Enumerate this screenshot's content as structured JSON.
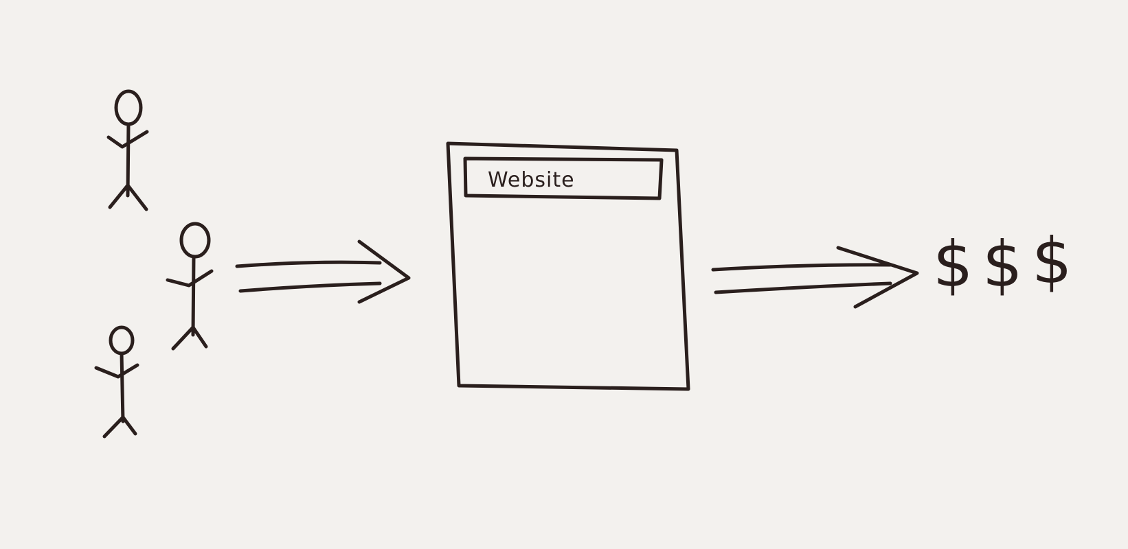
{
  "diagram": {
    "website_box": {
      "title_label": "Website"
    },
    "result": {
      "symbols": [
        "$",
        "$",
        "$"
      ]
    },
    "people_count": 3,
    "ink_color": "#2a1f1d",
    "paper_color": "#f3f1ee"
  }
}
